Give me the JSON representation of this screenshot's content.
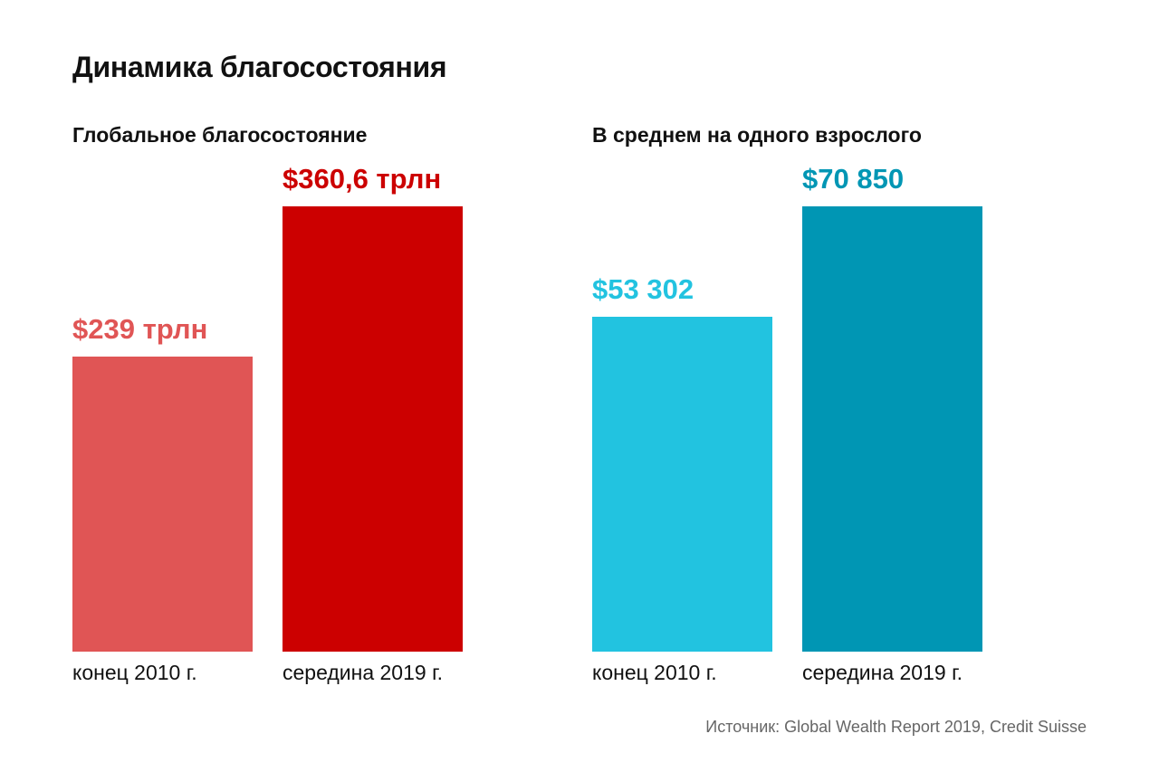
{
  "title": "Динамика благосостояния",
  "source": "Источник: Global Wealth Report 2019, Credit Suisse",
  "chart_data": [
    {
      "type": "bar",
      "title": "Глобальное благосостояние",
      "categories": [
        "конец 2010 г.",
        "середина 2019 г."
      ],
      "values": [
        239,
        360.6
      ],
      "unit": "трлн долларов",
      "value_labels": [
        "$239 трлн",
        "$360,6 трлн"
      ],
      "colors": [
        "#e05555",
        "#cc0000"
      ],
      "ylim": [
        0,
        360.6
      ]
    },
    {
      "type": "bar",
      "title": "В среднем на одного взрослого",
      "categories": [
        "конец 2010 г.",
        "середина 2019 г."
      ],
      "values": [
        53302,
        70850
      ],
      "unit": "долларов",
      "value_labels": [
        "$53 302",
        "$70 850"
      ],
      "colors": [
        "#22c3e0",
        "#0096b4"
      ],
      "ylim": [
        0,
        70850
      ]
    }
  ]
}
